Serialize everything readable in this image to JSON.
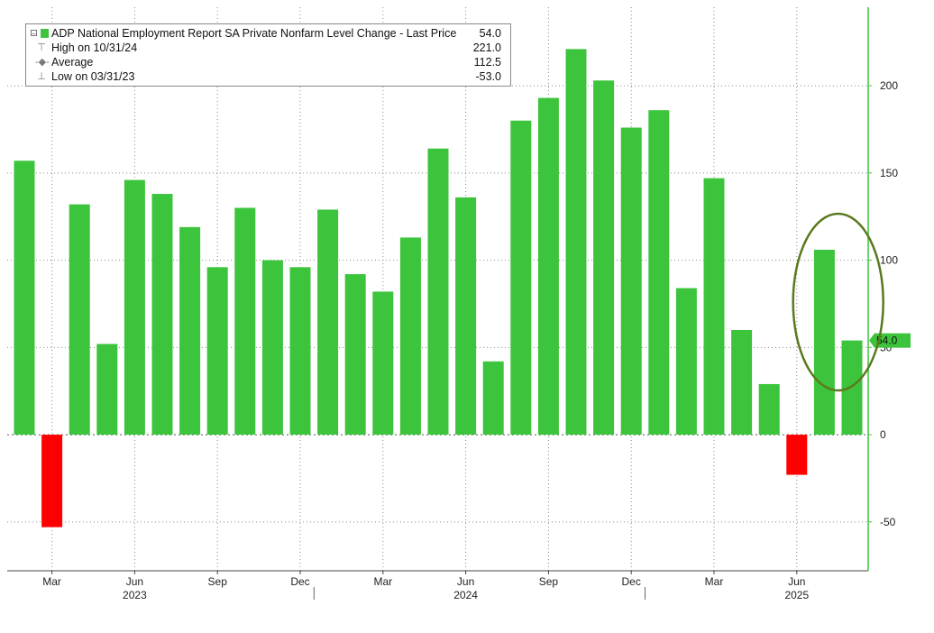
{
  "legend": {
    "title": "ADP National Employment Report SA Private Nonfarm Level Change - Last Price",
    "last_value": "54.0",
    "rows": [
      {
        "label": "High on 10/31/24",
        "value": "221.0"
      },
      {
        "label": "Average",
        "value": "112.5"
      },
      {
        "label": "Low on 03/31/23",
        "value": "-53.0"
      }
    ]
  },
  "colors": {
    "positive": "#3cc43c",
    "negative": "#ff0000",
    "axis": "#3cc43c",
    "annotation_ellipse": "#5a7a1e",
    "last_price_tag": "#3cc43c"
  },
  "chart_data": {
    "type": "bar",
    "categories": [
      "2023-02",
      "2023-03",
      "2023-04",
      "2023-05",
      "2023-06",
      "2023-07",
      "2023-08",
      "2023-09",
      "2023-10",
      "2023-11",
      "2023-12",
      "2024-01",
      "2024-02",
      "2024-03",
      "2024-04",
      "2024-05",
      "2024-06",
      "2024-07",
      "2024-08",
      "2024-09",
      "2024-10",
      "2024-11",
      "2024-12",
      "2025-01",
      "2025-02",
      "2025-03",
      "2025-04",
      "2025-05",
      "2025-06",
      "2025-07",
      "2025-08"
    ],
    "values": [
      157,
      -53,
      132,
      52,
      146,
      138,
      119,
      96,
      130,
      100,
      96,
      129,
      92,
      82,
      113,
      164,
      136,
      42,
      180,
      193,
      221,
      203,
      176,
      186,
      84,
      147,
      60,
      29,
      -23,
      106,
      54
    ],
    "ylim": [
      -78,
      245
    ],
    "y_ticks": [
      -50,
      0,
      50,
      100,
      150,
      200
    ],
    "y_tick_labels": [
      "-50",
      "0",
      "50",
      "100",
      "150",
      "200"
    ],
    "x_ticks": [
      {
        "label": "Mar",
        "index": 1
      },
      {
        "label": "Jun",
        "index": 4
      },
      {
        "label": "Sep",
        "index": 7
      },
      {
        "label": "Dec",
        "index": 10
      },
      {
        "label": "Mar",
        "index": 13
      },
      {
        "label": "Jun",
        "index": 16
      },
      {
        "label": "Sep",
        "index": 19
      },
      {
        "label": "Dec",
        "index": 22
      },
      {
        "label": "Mar",
        "index": 25
      },
      {
        "label": "Jun",
        "index": 28
      }
    ],
    "year_labels": [
      {
        "label": "2023",
        "index": 4
      },
      {
        "label": "2024",
        "index": 16
      },
      {
        "label": "2025",
        "index": 28
      }
    ],
    "year_separators": [
      10.5,
      22.5
    ],
    "last_price": {
      "value": 54,
      "label": "54.0"
    },
    "highlight": {
      "from_index": 29,
      "to_index": 30
    },
    "grid": true,
    "legend_position": "top-left"
  }
}
